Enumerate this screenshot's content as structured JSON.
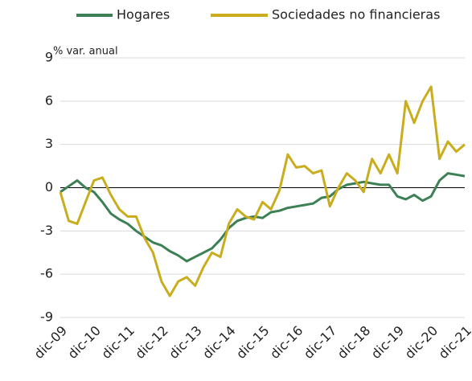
{
  "chart_data": {
    "type": "line",
    "y_label": "% var. anual",
    "categories": [
      "dic-09",
      null,
      null,
      null,
      "dic-10",
      null,
      null,
      null,
      "dic-11",
      null,
      null,
      null,
      "dic-12",
      null,
      null,
      null,
      "dic-13",
      null,
      null,
      null,
      "dic-14",
      null,
      null,
      null,
      "dic-15",
      null,
      null,
      null,
      "dic-16",
      null,
      null,
      null,
      "dic-17",
      null,
      null,
      null,
      "dic-18",
      null,
      null,
      null,
      "dic-19",
      null,
      null,
      null,
      "dic-20",
      null,
      null,
      null,
      "dic-21"
    ],
    "series": [
      {
        "name": "Hogares",
        "color": "#3d8055",
        "values": [
          -0.3,
          0.1,
          0.5,
          0.0,
          -0.3,
          -1.0,
          -1.8,
          -2.2,
          -2.5,
          -3.0,
          -3.4,
          -3.8,
          -4.0,
          -4.4,
          -4.7,
          -5.1,
          -4.8,
          -4.5,
          -4.2,
          -3.6,
          -2.8,
          -2.3,
          -2.1,
          -2.0,
          -2.1,
          -1.7,
          -1.6,
          -1.4,
          -1.3,
          -1.2,
          -1.1,
          -0.7,
          -0.6,
          -0.1,
          0.2,
          0.3,
          0.4,
          0.3,
          0.2,
          0.2,
          -0.6,
          -0.8,
          -0.5,
          -0.9,
          -0.6,
          0.5,
          1.0,
          0.9,
          0.8
        ]
      },
      {
        "name": "Sociedades no financieras",
        "color": "#c9ad1e",
        "values": [
          -0.3,
          -2.3,
          -2.5,
          -1.0,
          0.5,
          0.7,
          -0.5,
          -1.5,
          -2.0,
          -2.0,
          -3.5,
          -4.5,
          -6.5,
          -7.5,
          -6.5,
          -6.2,
          -6.8,
          -5.5,
          -4.5,
          -4.8,
          -2.5,
          -1.5,
          -2.0,
          -2.2,
          -1.0,
          -1.5,
          -0.2,
          2.3,
          1.4,
          1.5,
          1.0,
          1.2,
          -1.3,
          0.0,
          1.0,
          0.5,
          -0.3,
          2.0,
          1.0,
          2.3,
          1.0,
          6.0,
          4.5,
          6.0,
          7.0,
          2.0,
          3.2,
          2.5,
          3.0
        ]
      }
    ],
    "ylim": [
      -9,
      9
    ],
    "yticks": [
      -9,
      -6,
      -3,
      0,
      3,
      6,
      9
    ],
    "grid": true
  }
}
